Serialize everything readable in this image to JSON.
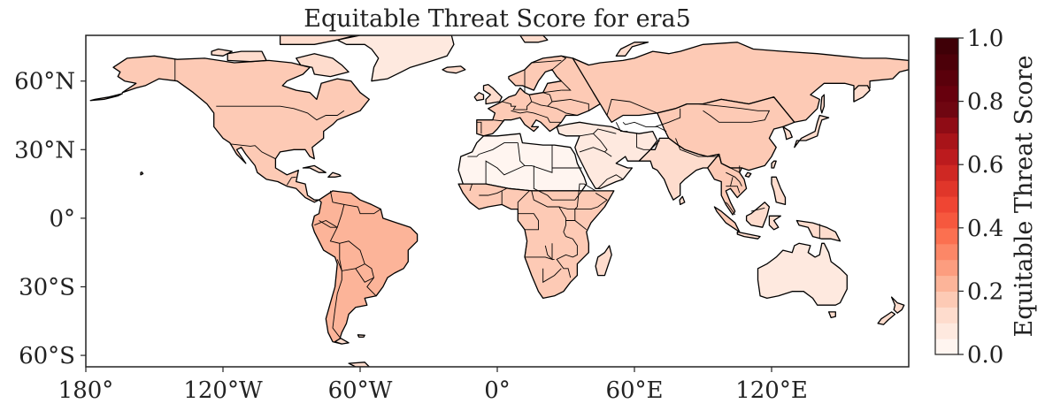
{
  "title": "Equitable Threat Score for era5",
  "map": {
    "projection": "PlateCarree",
    "lon_range": [
      -180,
      180
    ],
    "lat_range": [
      -65,
      80
    ],
    "x_ticks": [
      {
        "lon": -180,
        "label": "180°"
      },
      {
        "lon": -120,
        "label": "120°W"
      },
      {
        "lon": -60,
        "label": "60°W"
      },
      {
        "lon": 0,
        "label": "0°"
      },
      {
        "lon": 60,
        "label": "60°E"
      },
      {
        "lon": 120,
        "label": "120°E"
      }
    ],
    "y_ticks": [
      {
        "lat": 60,
        "label": "60°N"
      },
      {
        "lat": 30,
        "label": "30°N"
      },
      {
        "lat": 0,
        "label": "0°"
      },
      {
        "lat": -30,
        "label": "30°S"
      },
      {
        "lat": -60,
        "label": "60°S"
      }
    ],
    "land_fill_low": "#fee7de",
    "land_fill_mid": "#fcc7b0",
    "ocean_color": "#ffffff",
    "border_color": "#000000",
    "regions": [
      {
        "name": "north-america",
        "score": 0.18
      },
      {
        "name": "greenland",
        "score": 0.05
      },
      {
        "name": "south-america",
        "score": 0.2
      },
      {
        "name": "europe",
        "score": 0.15
      },
      {
        "name": "africa-north",
        "score": 0.04
      },
      {
        "name": "africa-central",
        "score": 0.16
      },
      {
        "name": "russia-asia",
        "score": 0.19
      },
      {
        "name": "middle-east",
        "score": 0.08
      },
      {
        "name": "india",
        "score": 0.14
      },
      {
        "name": "china",
        "score": 0.15
      },
      {
        "name": "southeast-asia",
        "score": 0.17
      },
      {
        "name": "australia",
        "score": 0.06
      },
      {
        "name": "new-zealand",
        "score": 0.12
      },
      {
        "name": "madagascar",
        "score": 0.1
      },
      {
        "name": "japan",
        "score": 0.14
      },
      {
        "name": "indonesia",
        "score": 0.16
      }
    ]
  },
  "colorbar": {
    "label": "Equitable Threat Score",
    "min": 0.0,
    "max": 1.0,
    "levels": 20,
    "colormap": "Reds",
    "colors": [
      "#fff5f0",
      "#fee9df",
      "#fedccd",
      "#fdcab5",
      "#fcb499",
      "#fc9d7f",
      "#fc8767",
      "#fb7050",
      "#f6583e",
      "#ef4533",
      "#e0362a",
      "#cf2823",
      "#bc1b1e",
      "#a81419",
      "#8f0c15",
      "#6f0611",
      "#67000d",
      "#5a000b",
      "#4c0009",
      "#3f0007"
    ],
    "ticks": [
      {
        "value": 0.0,
        "label": "0.0"
      },
      {
        "value": 0.2,
        "label": "0.2"
      },
      {
        "value": 0.4,
        "label": "0.4"
      },
      {
        "value": 0.6,
        "label": "0.6"
      },
      {
        "value": 0.8,
        "label": "0.8"
      },
      {
        "value": 1.0,
        "label": "1.0"
      }
    ]
  }
}
